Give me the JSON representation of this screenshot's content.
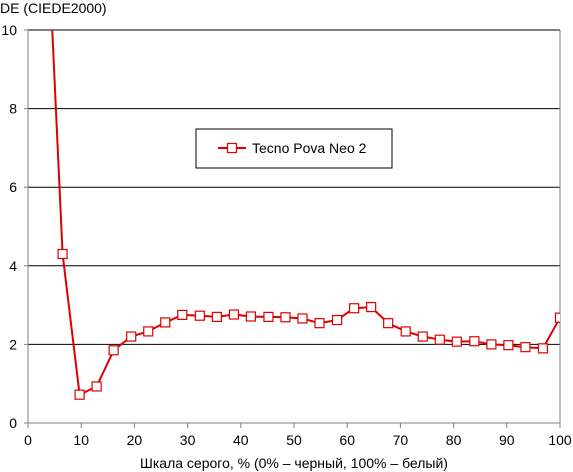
{
  "chart_data": {
    "type": "line",
    "title": "",
    "ylabel": "DE (CIEDE2000)",
    "xlabel": "Шкала серого, % (0% – черный, 100% – белый)",
    "xlim": [
      0,
      100
    ],
    "ylim": [
      0,
      10
    ],
    "xticks": [
      "0",
      "10",
      "20",
      "30",
      "40",
      "50",
      "60",
      "70",
      "80",
      "90",
      "100"
    ],
    "yticks": [
      "0",
      "2",
      "4",
      "6",
      "8",
      "10"
    ],
    "grid": "horizontal",
    "legend_position": "center-left",
    "colors": {
      "series": "#dd0000",
      "marker_fill": "#ffffff",
      "grid": "#000000"
    },
    "series": [
      {
        "name": "Tecno Pova Neo 2",
        "x": [
          3.2,
          6.5,
          9.7,
          12.9,
          16.1,
          19.4,
          22.6,
          25.8,
          29.0,
          32.3,
          35.5,
          38.7,
          41.9,
          45.2,
          48.4,
          51.6,
          54.8,
          58.1,
          61.3,
          64.5,
          67.7,
          71.0,
          74.2,
          77.4,
          80.6,
          83.9,
          87.1,
          90.3,
          93.5,
          96.8,
          100.0
        ],
        "y": [
          14.0,
          4.3,
          0.72,
          0.93,
          1.85,
          2.2,
          2.33,
          2.56,
          2.75,
          2.73,
          2.7,
          2.76,
          2.71,
          2.7,
          2.69,
          2.66,
          2.54,
          2.62,
          2.92,
          2.95,
          2.54,
          2.33,
          2.2,
          2.12,
          2.07,
          2.08,
          2.0,
          1.98,
          1.93,
          1.9,
          2.68
        ]
      }
    ]
  }
}
